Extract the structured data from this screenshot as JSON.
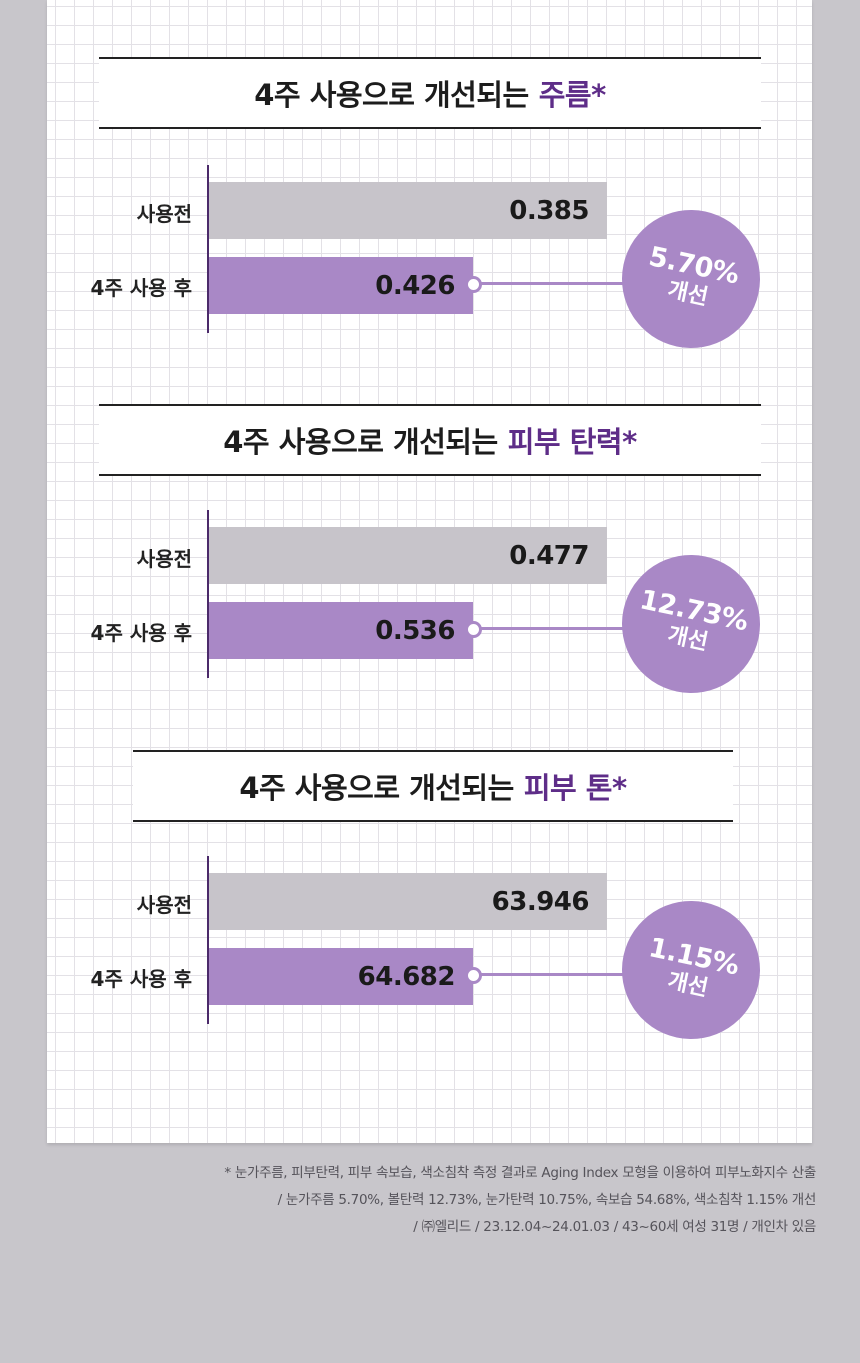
{
  "sections": [
    {
      "title_prefix": "4주 사용으로 개선되는",
      "title_highlight": "주름*",
      "before_label": "사용전",
      "after_label": "4주 사용 후",
      "before_value": "0.385",
      "after_value": "0.426",
      "badge_pct": "5.70%",
      "badge_word": "개선"
    },
    {
      "title_prefix": "4주 사용으로 개선되는",
      "title_highlight": "피부 탄력*",
      "before_label": "사용전",
      "after_label": "4주 사용 후",
      "before_value": "0.477",
      "after_value": "0.536",
      "badge_pct": "12.73%",
      "badge_word": "개선"
    },
    {
      "title_prefix": "4주 사용으로 개선되는",
      "title_highlight": "피부 톤*",
      "before_label": "사용전",
      "after_label": "4주 사용 후",
      "before_value": "63.946",
      "after_value": "64.682",
      "badge_pct": "1.15%",
      "badge_word": "개선"
    }
  ],
  "footnote": [
    "* 눈가주름, 피부탄력, 피부 속보습, 색소침착 측정 결과로 Aging Index 모형을 이용하여 피부노화지수 산출",
    "/ 눈가주름 5.70%, 볼탄력 12.73%, 눈가탄력 10.75%, 속보습 54.68%, 색소침착 1.15% 개선",
    "/ ㈜엘리드 / 23.12.04~24.01.03 / 43~60세 여성 31명 / 개인차 있음"
  ],
  "colors": {
    "accent": "#a988c6",
    "highlight_text": "#5e2d88",
    "before_bar": "#c7c4ca",
    "background": "#c8c6cb"
  },
  "chart_data": [
    {
      "type": "bar",
      "orientation": "horizontal",
      "title": "4주 사용으로 개선되는 주름*",
      "categories": [
        "사용전",
        "4주 사용 후"
      ],
      "values": [
        0.385,
        0.426
      ],
      "annotation": "5.70% 개선"
    },
    {
      "type": "bar",
      "orientation": "horizontal",
      "title": "4주 사용으로 개선되는 피부 탄력*",
      "categories": [
        "사용전",
        "4주 사용 후"
      ],
      "values": [
        0.477,
        0.536
      ],
      "annotation": "12.73% 개선"
    },
    {
      "type": "bar",
      "orientation": "horizontal",
      "title": "4주 사용으로 개선되는 피부 톤*",
      "categories": [
        "사용전",
        "4주 사용 후"
      ],
      "values": [
        63.946,
        64.682
      ],
      "annotation": "1.15% 개선"
    }
  ]
}
